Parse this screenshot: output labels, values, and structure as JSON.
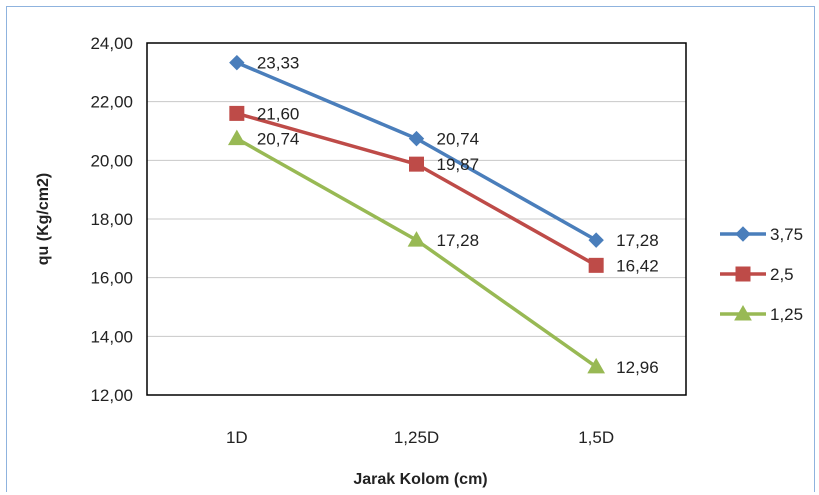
{
  "chart_data": {
    "type": "line",
    "xlabel": "Jarak Kolom (cm)",
    "ylabel": "qu (Kg/cm2)",
    "categories": [
      "1D",
      "1,25D",
      "1,5D"
    ],
    "ylim": [
      12,
      24
    ],
    "yticks": [
      "12,00",
      "14,00",
      "16,00",
      "18,00",
      "20,00",
      "22,00",
      "24,00"
    ],
    "ytick_values": [
      12,
      14,
      16,
      18,
      20,
      22,
      24
    ],
    "grid": true,
    "legend_position": "right",
    "series": [
      {
        "name": "3,75",
        "color": "#4a7ebb",
        "marker": "diamond",
        "values": [
          23.33,
          20.74,
          17.28
        ],
        "labels": [
          "23,33",
          "20,74",
          "17,28"
        ]
      },
      {
        "name": "2,5",
        "color": "#be4b48",
        "marker": "square",
        "values": [
          21.6,
          19.87,
          16.42
        ],
        "labels": [
          "21,60",
          "19,87",
          "16,42"
        ]
      },
      {
        "name": "1,25",
        "color": "#98b954",
        "marker": "triangle",
        "values": [
          20.74,
          17.28,
          12.96
        ],
        "labels": [
          "20,74",
          "17,28",
          "12,96"
        ]
      }
    ]
  }
}
